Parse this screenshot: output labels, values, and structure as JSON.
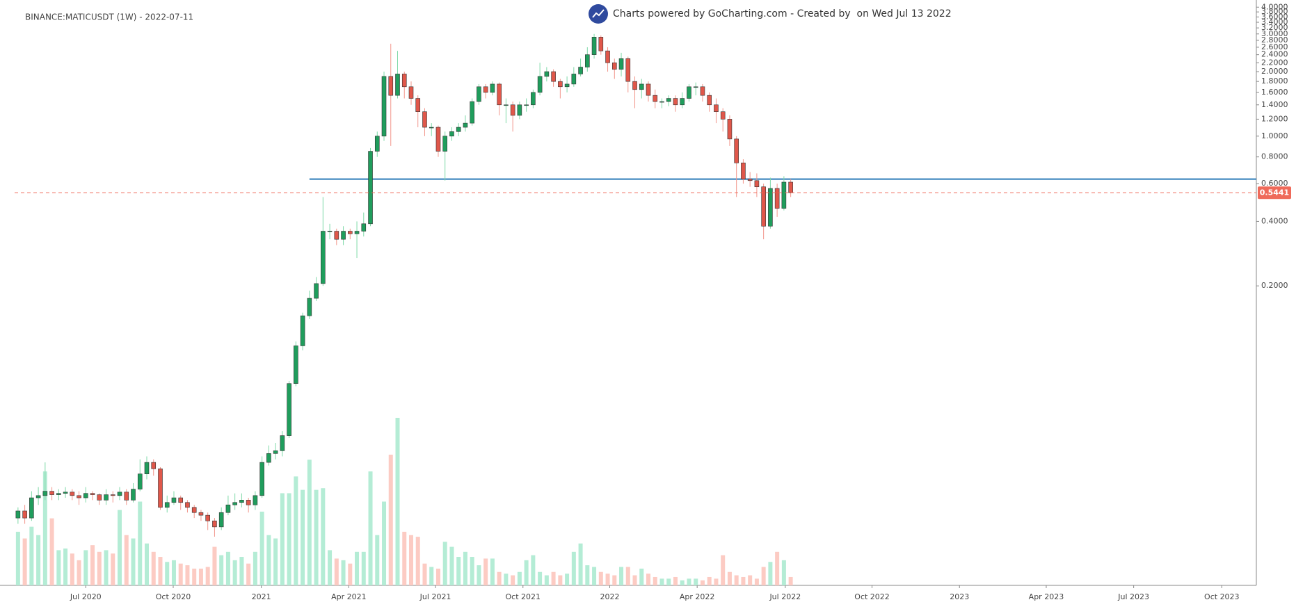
{
  "chart_data": {
    "type": "candlestick",
    "title": "BINANCE:MATICUSDT (1W) - 2022-07-11",
    "subtitle": "Charts powered by GoCharting.com - Created by  on Wed Jul 13 2022",
    "log_scale": true,
    "up_color": "#1f9d5c",
    "down_color": "#e0574a",
    "volume_up_color": "#b4ecd5",
    "volume_down_color": "#fccbc3",
    "open": [
      0.0165,
      0.0178,
      0.0165,
      0.0205,
      0.021,
      0.022,
      0.0212,
      0.0215,
      0.0218,
      0.021,
      0.0205,
      0.0215,
      0.0212,
      0.02,
      0.0212,
      0.021,
      0.0218,
      0.02,
      0.0225,
      0.0265,
      0.03,
      0.028,
      0.0185,
      0.0195,
      0.0205,
      0.0195,
      0.0185,
      0.0175,
      0.017,
      0.016,
      0.015,
      0.0175,
      0.019,
      0.0195,
      0.02,
      0.019,
      0.021,
      0.03,
      0.033,
      0.034,
      0.04,
      0.07,
      0.105,
      0.145,
      0.175,
      0.205,
      0.36,
      0.36,
      0.33,
      0.36,
      0.35,
      0.36,
      0.39,
      0.85,
      1.0,
      1.9,
      1.55,
      1.95,
      1.7,
      1.5,
      1.3,
      1.1,
      1.1,
      0.85,
      1.0,
      1.05,
      1.1,
      1.15,
      1.45,
      1.7,
      1.6,
      1.75,
      1.4,
      1.4,
      1.25,
      1.4,
      1.4,
      1.6,
      1.9,
      2.0,
      1.8,
      1.7,
      1.75,
      1.95,
      2.1,
      2.4,
      2.9,
      2.5,
      2.2,
      2.05,
      2.3,
      1.8,
      1.65,
      1.75,
      1.55,
      1.45,
      1.45,
      1.5,
      1.4,
      1.5,
      1.7,
      1.7,
      1.55,
      1.4,
      1.3,
      1.2,
      0.97,
      0.75,
      0.63,
      0.62,
      0.58,
      0.38,
      0.57,
      0.46,
      0.61
    ],
    "high": [
      0.0185,
      0.019,
      0.022,
      0.023,
      0.03,
      0.023,
      0.0225,
      0.023,
      0.0225,
      0.022,
      0.023,
      0.022,
      0.0215,
      0.0225,
      0.022,
      0.023,
      0.0225,
      0.024,
      0.031,
      0.032,
      0.031,
      0.0285,
      0.021,
      0.022,
      0.021,
      0.02,
      0.019,
      0.018,
      0.0175,
      0.0165,
      0.0185,
      0.021,
      0.0215,
      0.0215,
      0.0205,
      0.022,
      0.032,
      0.036,
      0.037,
      0.042,
      0.072,
      0.11,
      0.15,
      0.19,
      0.22,
      0.52,
      0.39,
      0.37,
      0.38,
      0.37,
      0.4,
      0.44,
      0.88,
      1.05,
      2.0,
      2.7,
      2.5,
      2.0,
      1.8,
      1.55,
      1.35,
      1.15,
      1.12,
      1.05,
      1.1,
      1.15,
      1.25,
      1.5,
      1.75,
      1.75,
      1.8,
      1.78,
      1.5,
      1.45,
      1.45,
      1.5,
      1.65,
      2.2,
      2.1,
      2.05,
      1.85,
      1.9,
      2.1,
      2.3,
      2.6,
      3.0,
      2.95,
      2.6,
      2.3,
      2.45,
      2.35,
      1.9,
      1.85,
      1.8,
      1.65,
      1.5,
      1.55,
      1.55,
      1.6,
      1.75,
      1.78,
      1.75,
      1.6,
      1.5,
      1.35,
      1.25,
      1.0,
      0.78,
      0.68,
      0.67,
      0.6,
      0.64,
      0.6,
      0.65,
      0.63
    ],
    "low": [
      0.0155,
      0.0155,
      0.016,
      0.019,
      0.02,
      0.02,
      0.02,
      0.0205,
      0.02,
      0.019,
      0.0195,
      0.02,
      0.019,
      0.019,
      0.0195,
      0.02,
      0.019,
      0.0195,
      0.022,
      0.025,
      0.026,
      0.018,
      0.0175,
      0.019,
      0.018,
      0.0175,
      0.0165,
      0.016,
      0.0145,
      0.0135,
      0.0145,
      0.017,
      0.018,
      0.0185,
      0.0175,
      0.018,
      0.0205,
      0.029,
      0.031,
      0.032,
      0.039,
      0.068,
      0.1,
      0.14,
      0.17,
      0.2,
      0.33,
      0.31,
      0.31,
      0.33,
      0.27,
      0.34,
      0.38,
      0.8,
      0.95,
      0.9,
      1.5,
      1.5,
      1.4,
      1.1,
      1.0,
      1.0,
      0.8,
      0.62,
      0.95,
      1.0,
      1.05,
      1.12,
      1.4,
      1.5,
      1.55,
      1.25,
      1.15,
      1.05,
      1.2,
      1.3,
      1.35,
      1.55,
      1.8,
      1.7,
      1.5,
      1.6,
      1.7,
      1.9,
      2.0,
      2.3,
      2.4,
      2.0,
      1.85,
      1.9,
      1.6,
      1.35,
      1.5,
      1.45,
      1.35,
      1.35,
      1.38,
      1.3,
      1.35,
      1.45,
      1.55,
      1.45,
      1.3,
      1.15,
      1.05,
      0.9,
      0.52,
      0.6,
      0.58,
      0.52,
      0.33,
      0.37,
      0.42,
      0.45,
      0.52
    ],
    "close": [
      0.0178,
      0.0165,
      0.0205,
      0.021,
      0.022,
      0.0212,
      0.0215,
      0.0218,
      0.021,
      0.0205,
      0.0215,
      0.0212,
      0.02,
      0.0212,
      0.021,
      0.0218,
      0.02,
      0.0225,
      0.0265,
      0.03,
      0.028,
      0.0185,
      0.0195,
      0.0205,
      0.0195,
      0.0185,
      0.0175,
      0.017,
      0.016,
      0.015,
      0.0175,
      0.019,
      0.0195,
      0.02,
      0.019,
      0.021,
      0.03,
      0.033,
      0.034,
      0.04,
      0.07,
      0.105,
      0.145,
      0.175,
      0.205,
      0.36,
      0.36,
      0.33,
      0.36,
      0.35,
      0.36,
      0.39,
      0.85,
      1.0,
      1.9,
      1.55,
      1.95,
      1.7,
      1.5,
      1.3,
      1.1,
      1.1,
      0.85,
      1.0,
      1.05,
      1.1,
      1.15,
      1.45,
      1.7,
      1.6,
      1.75,
      1.4,
      1.4,
      1.25,
      1.4,
      1.4,
      1.6,
      1.9,
      2.0,
      1.8,
      1.7,
      1.75,
      1.95,
      2.1,
      2.4,
      2.9,
      2.5,
      2.2,
      2.05,
      2.3,
      1.8,
      1.65,
      1.75,
      1.55,
      1.45,
      1.45,
      1.5,
      1.4,
      1.5,
      1.7,
      1.7,
      1.55,
      1.4,
      1.3,
      1.2,
      0.97,
      0.75,
      0.63,
      0.62,
      0.58,
      0.38,
      0.57,
      0.46,
      0.61,
      0.5441
    ],
    "volume": [
      32,
      28,
      35,
      30,
      68,
      40,
      21,
      22,
      19,
      15,
      21,
      24,
      20,
      21,
      19,
      45,
      30,
      28,
      50,
      25,
      20,
      17,
      14,
      15,
      13,
      12,
      10,
      10,
      11,
      23,
      18,
      20,
      15,
      17,
      13,
      20,
      44,
      30,
      28,
      55,
      55,
      65,
      57,
      75,
      57,
      58,
      21,
      16,
      15,
      13,
      20,
      20,
      68,
      30,
      50,
      78,
      100,
      32,
      30,
      29,
      13,
      11,
      10,
      26,
      23,
      17,
      20,
      17,
      12,
      16,
      16,
      8,
      7,
      6,
      8,
      15,
      18,
      8,
      6,
      8,
      6,
      7,
      20,
      25,
      12,
      11,
      8,
      7,
      6,
      11,
      11,
      6,
      10,
      7,
      5,
      4,
      4,
      5,
      3,
      4,
      4,
      3,
      5,
      4,
      18,
      8,
      6,
      5,
      6,
      4,
      11,
      14,
      20,
      15,
      5
    ],
    "ylim": [
      0.008,
      4.13
    ],
    "yticks": [
      {
        "value": 0.2,
        "label": "0.2000"
      },
      {
        "value": 0.4,
        "label": "0.4000"
      },
      {
        "value": 0.6,
        "label": "0.6000"
      },
      {
        "value": 0.8,
        "label": "0.8000"
      },
      {
        "value": 1.0,
        "label": "1.0000"
      },
      {
        "value": 1.2,
        "label": "1.2000"
      },
      {
        "value": 1.4,
        "label": "1.4000"
      },
      {
        "value": 1.6,
        "label": "1.6000"
      },
      {
        "value": 1.8,
        "label": "1.8000"
      },
      {
        "value": 2.0,
        "label": "2.0000"
      },
      {
        "value": 2.2,
        "label": "2.2000"
      },
      {
        "value": 2.4,
        "label": "2.4000"
      },
      {
        "value": 2.6,
        "label": "2.6000"
      },
      {
        "value": 2.8,
        "label": "2.8000"
      },
      {
        "value": 3.0,
        "label": "3.0000"
      },
      {
        "value": 3.2,
        "label": "3.2000"
      },
      {
        "value": 3.4,
        "label": "3.4000"
      },
      {
        "value": 3.6,
        "label": "3.6000"
      },
      {
        "value": 3.8,
        "label": "3.8000"
      },
      {
        "value": 4.0,
        "label": "4.0000"
      }
    ],
    "xlim": [
      -0.5,
      182.7
    ],
    "xticks": [
      {
        "value": 10,
        "label": "Jul 2020"
      },
      {
        "value": 22.9,
        "label": "Oct 2020"
      },
      {
        "value": 35.9,
        "label": "2021"
      },
      {
        "value": 48.8,
        "label": "Apr 2021"
      },
      {
        "value": 61.6,
        "label": "Jul 2021"
      },
      {
        "value": 74.5,
        "label": "Oct 2021"
      },
      {
        "value": 87.3,
        "label": "2022"
      },
      {
        "value": 100.2,
        "label": "Apr 2022"
      },
      {
        "value": 113.2,
        "label": "Jul 2022"
      },
      {
        "value": 126,
        "label": "Oct 2022"
      },
      {
        "value": 138.9,
        "label": "2023"
      },
      {
        "value": 151.7,
        "label": "Apr 2023"
      },
      {
        "value": 164.6,
        "label": "Jul 2023"
      },
      {
        "value": 177.6,
        "label": "Oct 2023"
      }
    ],
    "levels": [
      {
        "value": 0.63,
        "color": "#2a7ab8"
      }
    ],
    "last_price_color": "#ef6a5a"
  }
}
